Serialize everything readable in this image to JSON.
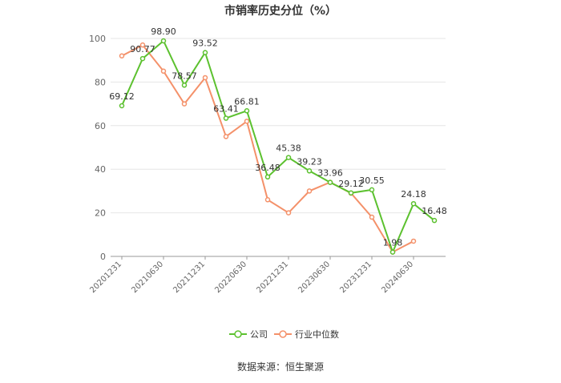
{
  "chart_data": {
    "type": "line",
    "title": "市销率历史分位（%）",
    "source": "数据来源：恒生聚源",
    "ylim": [
      0,
      100
    ],
    "yticks": [
      0,
      20,
      40,
      60,
      80,
      100
    ],
    "xtick_labels": [
      "20201231",
      "20210630",
      "20211231",
      "20220630",
      "20221231",
      "20230630",
      "20231231",
      "20240630"
    ],
    "legend_position": "bottom",
    "grid": true,
    "series": [
      {
        "name": "公司",
        "color": "#5cc12f",
        "values": [
          69.12,
          90.77,
          98.9,
          78.57,
          93.52,
          63.41,
          66.81,
          36.48,
          45.38,
          39.23,
          33.96,
          29.12,
          30.55,
          1.98,
          24.18,
          16.48
        ],
        "labels": [
          "69.12",
          "90.77",
          "98.90",
          "78.57",
          "93.52",
          "63.41",
          "66.81",
          "36.48",
          "45.38",
          "39.23",
          "33.96",
          "29.12",
          "30.55",
          "1.98",
          "24.18",
          "16.48"
        ]
      },
      {
        "name": "行业中位数",
        "color": "#f4916a",
        "values": [
          92,
          97,
          85,
          70,
          82,
          55,
          62,
          26,
          20,
          30,
          34,
          29,
          18,
          2,
          7,
          null
        ]
      }
    ]
  }
}
